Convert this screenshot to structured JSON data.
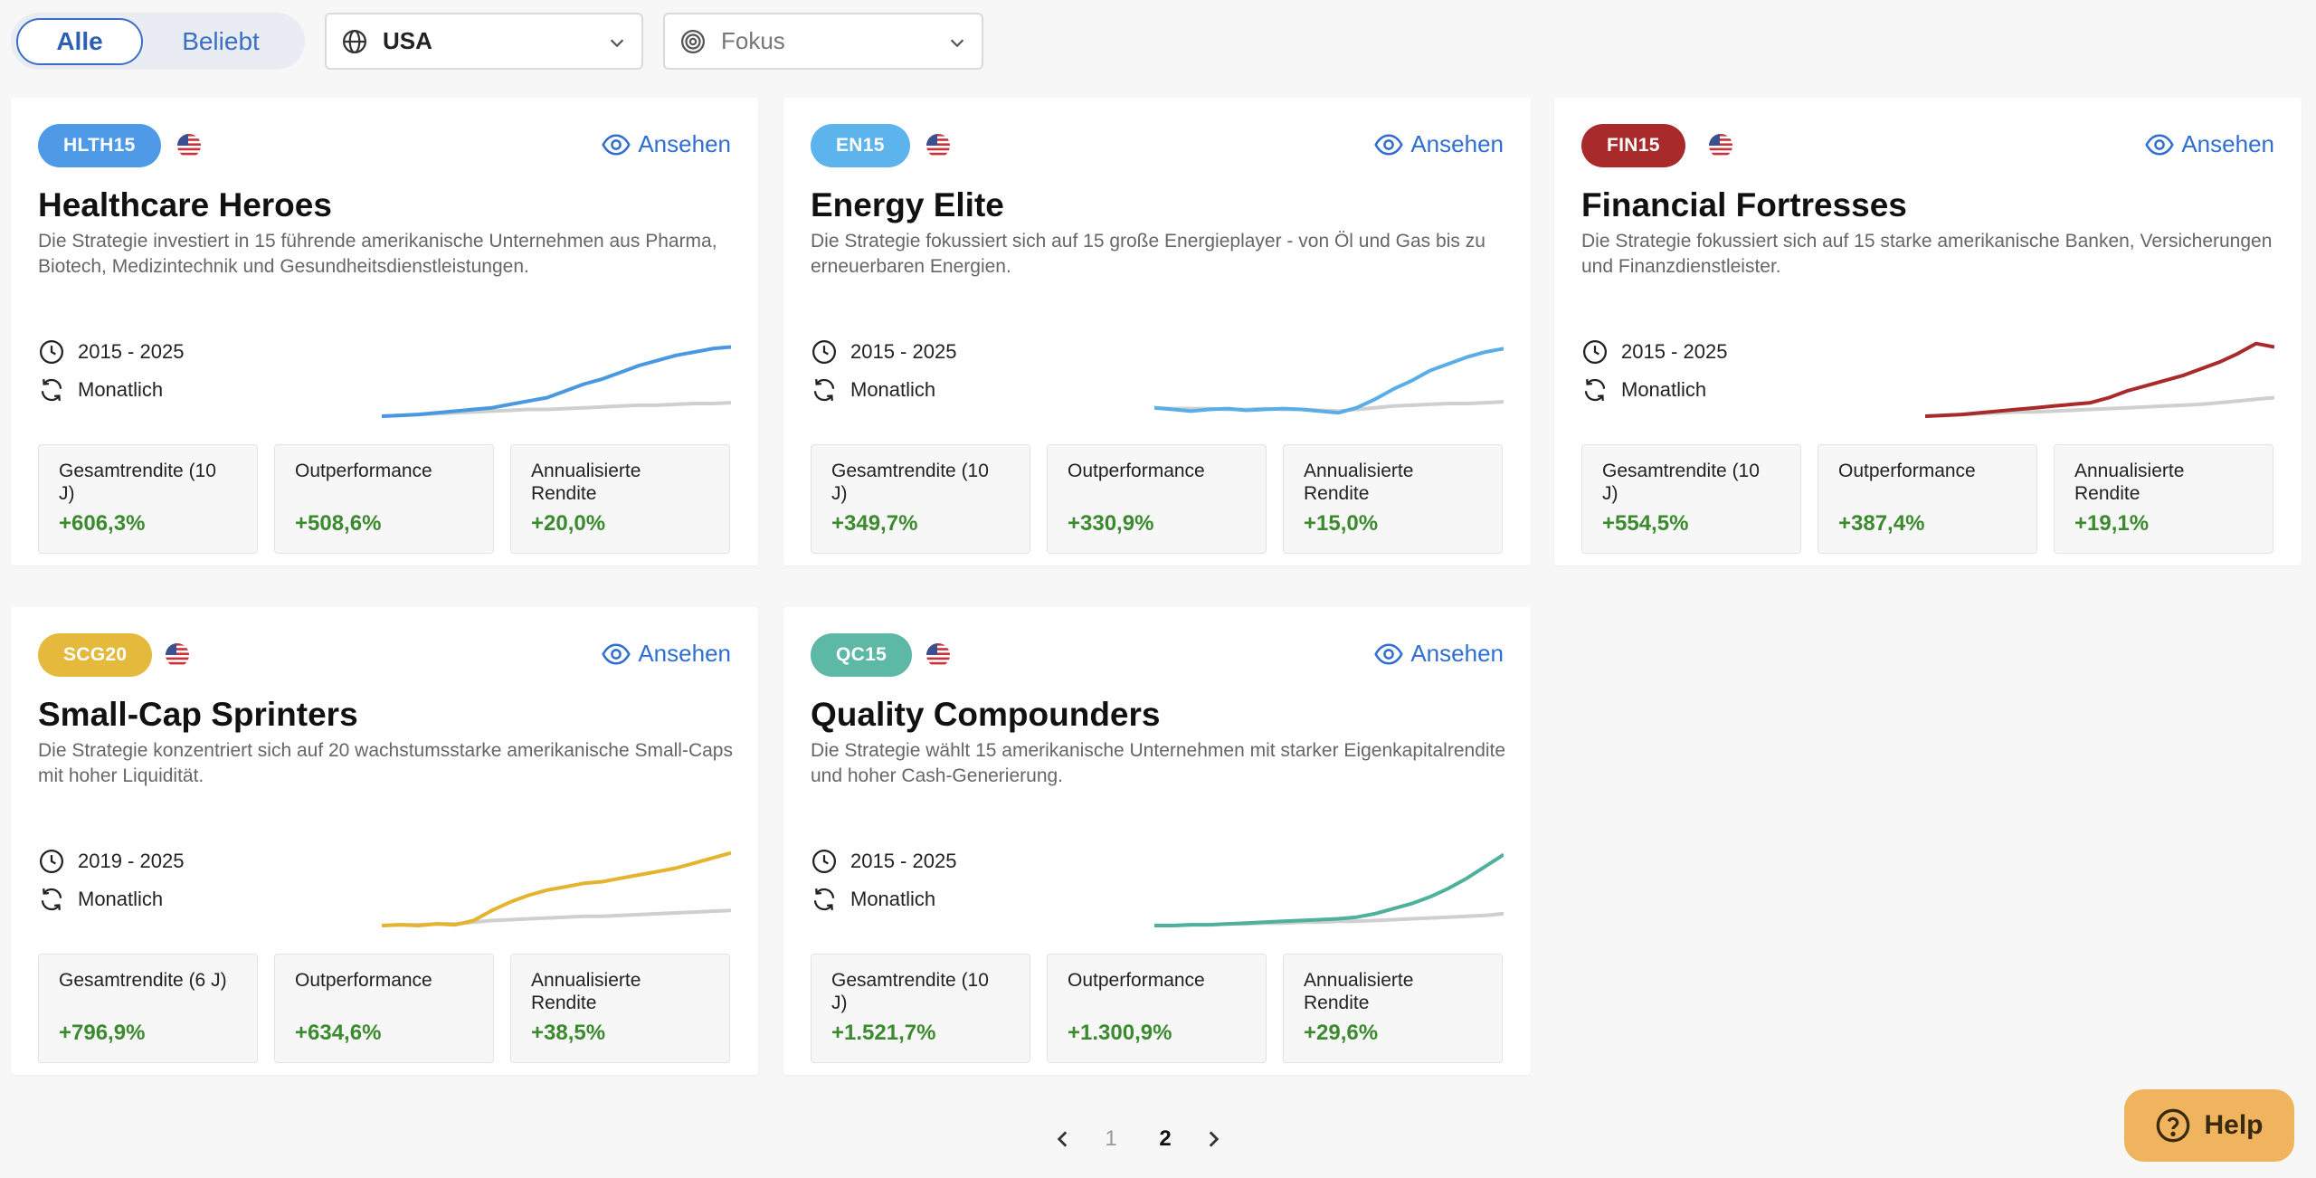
{
  "filters": {
    "segment": {
      "all": "Alle",
      "popular": "Beliebt",
      "active": "all"
    },
    "region": {
      "value": "USA"
    },
    "focus": {
      "placeholder": "Fokus"
    }
  },
  "view_label": "Ansehen",
  "frequency_label": "Monatlich",
  "strategies": [
    {
      "code": "HLTH15",
      "badge_color": "#4e9ae6",
      "line_color": "#4a98e0",
      "title": "Healthcare Heroes",
      "description": "Die Strategie investiert in 15 führende amerikanische Unternehmen aus Pharma, Biotech, Medizintechnik und Gesundheitsdienstleistungen.",
      "period": "2015 - 2025",
      "stats": [
        {
          "label": "Gesamtrendite (10 J)",
          "value": "+606,3%"
        },
        {
          "label": "Outperformance",
          "value": "+508,6%"
        },
        {
          "label": "Annualisierte Rendite",
          "value": "+20,0%"
        }
      ],
      "spark": {
        "strategy": [
          0,
          1,
          2,
          4,
          6,
          8,
          10,
          14,
          18,
          22,
          30,
          38,
          44,
          52,
          60,
          66,
          72,
          76,
          80,
          82
        ],
        "benchmark": [
          0,
          1,
          2,
          3,
          4,
          5,
          6,
          7,
          8,
          8,
          9,
          10,
          11,
          12,
          13,
          13,
          14,
          15,
          15,
          16
        ]
      }
    },
    {
      "code": "EN15",
      "badge_color": "#5db3ec",
      "line_color": "#5aaee8",
      "title": "Energy Elite",
      "description": "Die Strategie fokussiert sich auf 15 große Energieplayer - von Öl und Gas bis zu erneuerbaren Energien.",
      "period": "2015 - 2025",
      "stats": [
        {
          "label": "Gesamtrendite (10 J)",
          "value": "+349,7%"
        },
        {
          "label": "Outperformance",
          "value": "+330,9%"
        },
        {
          "label": "Annualisierte Rendite",
          "value": "+15,0%"
        }
      ],
      "spark": {
        "strategy": [
          10,
          8,
          6,
          8,
          9,
          7,
          8,
          9,
          8,
          6,
          4,
          10,
          20,
          32,
          42,
          54,
          62,
          70,
          76,
          80
        ],
        "benchmark": [
          10,
          9,
          9,
          9,
          8,
          8,
          9,
          8,
          8,
          7,
          6,
          8,
          10,
          12,
          13,
          14,
          15,
          15,
          16,
          17
        ]
      }
    },
    {
      "code": "FIN15",
      "badge_color": "#a82a2a",
      "line_color": "#a82a2a",
      "title": "Financial Fortresses",
      "description": "Die Strategie fokussiert sich auf 15 starke amerikanische Banken, Versicherungen und Finanzdienstleister.",
      "period": "2015 - 2025",
      "stats": [
        {
          "label": "Gesamtrendite (10 J)",
          "value": "+554,5%"
        },
        {
          "label": "Outperformance",
          "value": "+387,4%"
        },
        {
          "label": "Annualisierte Rendite",
          "value": "+19,1%"
        }
      ],
      "spark": {
        "strategy": [
          0,
          1,
          2,
          4,
          6,
          8,
          10,
          12,
          14,
          16,
          22,
          30,
          36,
          42,
          48,
          56,
          64,
          74,
          86,
          82
        ],
        "benchmark": [
          0,
          1,
          2,
          3,
          4,
          5,
          5,
          6,
          7,
          8,
          9,
          10,
          11,
          12,
          13,
          14,
          16,
          18,
          20,
          22
        ]
      }
    },
    {
      "code": "SCG20",
      "badge_color": "#e4b93c",
      "line_color": "#e4b42e",
      "title": "Small-Cap Sprinters",
      "description": "Die Strategie konzentriert sich auf 20 wachstumsstarke amerikanische Small-Caps mit hoher Liquidität.",
      "period": "2019 - 2025",
      "stats": [
        {
          "label": "Gesamtrendite (6 J)",
          "value": "+796,9%"
        },
        {
          "label": "Outperformance",
          "value": "+634,6%"
        },
        {
          "label": "Annualisierte Rendite",
          "value": "+38,5%"
        }
      ],
      "spark": {
        "strategy": [
          0,
          1,
          0,
          2,
          1,
          6,
          18,
          28,
          36,
          42,
          46,
          50,
          52,
          56,
          60,
          64,
          68,
          74,
          80,
          86
        ],
        "benchmark": [
          0,
          1,
          1,
          2,
          2,
          4,
          6,
          7,
          8,
          9,
          10,
          11,
          11,
          12,
          13,
          14,
          15,
          16,
          17,
          18
        ]
      }
    },
    {
      "code": "QC15",
      "badge_color": "#5db8a6",
      "line_color": "#4fb09c",
      "title": "Quality Compounders",
      "description": "Die Strategie wählt 15 amerikanische Unternehmen mit starker Eigenkapitalrendite und hoher Cash-Generierung.",
      "period": "2015 - 2025",
      "stats": [
        {
          "label": "Gesamtrendite (10 J)",
          "value": "+1.521,7%"
        },
        {
          "label": "Outperformance",
          "value": "+1.300,9%"
        },
        {
          "label": "Annualisierte Rendite",
          "value": "+29,6%"
        }
      ],
      "spark": {
        "strategy": [
          0,
          0,
          1,
          1,
          2,
          3,
          4,
          5,
          6,
          7,
          8,
          10,
          14,
          20,
          26,
          34,
          44,
          56,
          70,
          84
        ],
        "benchmark": [
          0,
          0,
          1,
          1,
          2,
          2,
          3,
          3,
          4,
          4,
          5,
          5,
          6,
          7,
          8,
          9,
          10,
          11,
          12,
          14
        ]
      }
    }
  ],
  "pagination": {
    "pages": [
      "1",
      "2"
    ],
    "current": "2"
  },
  "help": {
    "label": "Help"
  }
}
